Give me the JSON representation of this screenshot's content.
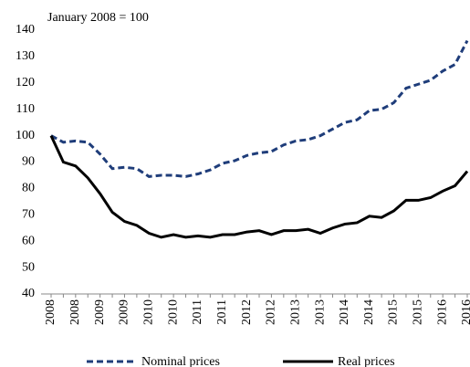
{
  "chart_data": {
    "type": "line",
    "subtitle": "January 2008 = 100",
    "categories": [
      "2008",
      null,
      "2008",
      null,
      "2009",
      null,
      "2009",
      null,
      "2010",
      null,
      "2010",
      null,
      "2011",
      null,
      "2011",
      null,
      "2012",
      null,
      "2012",
      null,
      "2013",
      null,
      "2013",
      null,
      "2014",
      null,
      "2014",
      null,
      "2015",
      null,
      "2015",
      null,
      "2016",
      null,
      "2016"
    ],
    "series": [
      {
        "name": "Nominal prices",
        "color": "#1f3d7a",
        "dashed": true,
        "values": [
          100,
          97.5,
          98,
          97.5,
          93,
          87.5,
          88,
          87.5,
          84.5,
          85,
          85,
          84.5,
          85.5,
          87,
          89.5,
          90.5,
          92.5,
          93.5,
          94,
          96.5,
          98,
          98.5,
          100,
          102.5,
          105,
          106,
          109.5,
          110,
          112.5,
          118,
          119.5,
          121,
          124.5,
          127,
          136
        ]
      },
      {
        "name": "Real prices",
        "color": "#000000",
        "dashed": false,
        "values": [
          100,
          90,
          88.5,
          84,
          78,
          71,
          67.5,
          66,
          63,
          61.5,
          62.5,
          61.5,
          62,
          61.5,
          62.5,
          62.5,
          63.5,
          64,
          62.5,
          64,
          64,
          64.5,
          63,
          65,
          66.5,
          67,
          69.5,
          69,
          71.5,
          75.5,
          75.5,
          76.5,
          79,
          81,
          86.5
        ]
      }
    ],
    "ylim": [
      40,
      140
    ],
    "yticks": [
      40,
      50,
      60,
      70,
      80,
      90,
      100,
      110,
      120,
      130,
      140
    ],
    "grid": false
  }
}
